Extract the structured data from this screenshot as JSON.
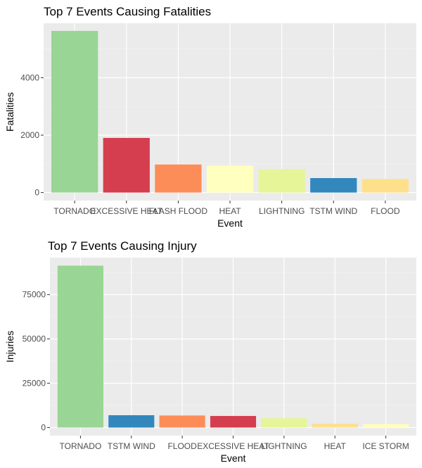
{
  "chart_data": [
    {
      "type": "bar",
      "title": "Top 7 Events Causing Fatalities",
      "xlabel": "Event",
      "ylabel": "Fatalities",
      "categories": [
        "TORNADO",
        "EXCESSIVE HEAT",
        "FLASH FLOOD",
        "HEAT",
        "LIGHTNING",
        "TSTM WIND",
        "FLOOD"
      ],
      "values": [
        5633,
        1903,
        978,
        937,
        816,
        504,
        470
      ],
      "colors": [
        "#99D594",
        "#D53E4F",
        "#FC8D59",
        "#FFFFBF",
        "#E6F598",
        "#3288BD",
        "#FEE08B"
      ],
      "yticks": [
        0,
        2000,
        4000
      ],
      "ylim": [
        -280,
        5900
      ],
      "grid": true,
      "legend": "none"
    },
    {
      "type": "bar",
      "title": "Top 7 Events Causing Injury",
      "xlabel": "Event",
      "ylabel": "Injuries",
      "categories": [
        "TORNADO",
        "TSTM WIND",
        "FLOOD",
        "EXCESSIVE HEAT",
        "LIGHTNING",
        "HEAT",
        "ICE STORM"
      ],
      "values": [
        91346,
        6957,
        6789,
        6525,
        5230,
        2100,
        1975
      ],
      "colors": [
        "#99D594",
        "#3288BD",
        "#FC8D59",
        "#D53E4F",
        "#E6F598",
        "#FEE08B",
        "#FFFFBF"
      ],
      "yticks": [
        0,
        25000,
        50000,
        75000
      ],
      "ylim": [
        -4567,
        95913
      ],
      "grid": true,
      "legend": "none"
    }
  ]
}
